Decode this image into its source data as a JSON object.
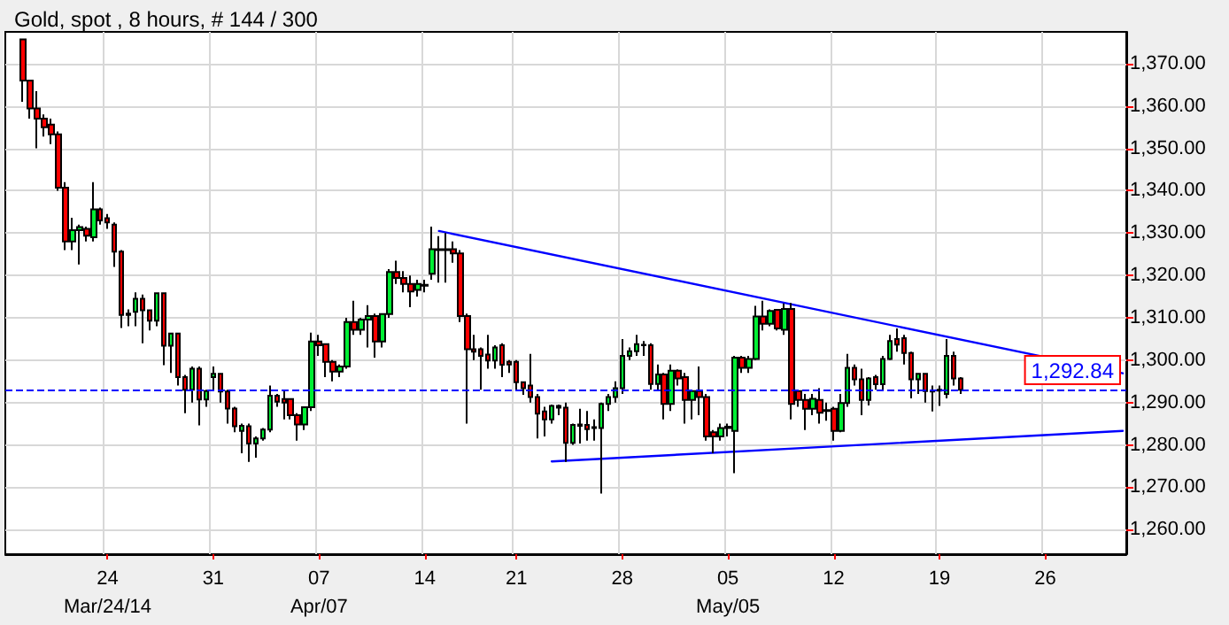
{
  "chart_data": {
    "type": "candlestick",
    "title": "Gold, spot , 8 hours, # 144 / 300",
    "categories": [
      null,
      null,
      null,
      null,
      null,
      null,
      null,
      null,
      null,
      null,
      null,
      null,
      null,
      null,
      "24\nMar/24/14",
      null,
      null,
      null,
      null,
      null,
      null,
      null,
      null,
      null,
      null,
      null,
      null,
      null,
      null,
      "31",
      null,
      null,
      null,
      null,
      null,
      null,
      null,
      null,
      null,
      null,
      null,
      null,
      null,
      null,
      "07\nApr/07",
      null,
      null,
      null,
      null,
      null,
      null,
      null,
      null,
      null,
      null,
      null,
      null,
      null,
      null,
      "14",
      null,
      null,
      null,
      null,
      null,
      null,
      null,
      null,
      null,
      null,
      null,
      null,
      "21",
      null,
      null,
      null,
      null,
      null,
      null,
      null,
      null,
      null,
      null,
      null,
      null,
      null,
      null,
      "28",
      null,
      null,
      null,
      null,
      null,
      null,
      null,
      null,
      null,
      null,
      null,
      null,
      null,
      null,
      "05\nMay/05",
      null,
      null,
      null,
      null,
      null,
      null,
      null,
      null,
      null,
      null,
      null,
      null,
      null,
      null,
      "12",
      null,
      null,
      null,
      null,
      null,
      null,
      null,
      null,
      null,
      null,
      null,
      null,
      null,
      null,
      "19",
      null,
      null,
      null,
      null,
      null,
      null,
      null,
      null,
      null,
      null,
      null,
      null,
      null,
      null,
      "26",
      null,
      null,
      null,
      null,
      null,
      null,
      null,
      null,
      null,
      null,
      null
    ],
    "ohlc": [
      null,
      null,
      [
        1375.7,
        1375.7,
        1361,
        1366
      ],
      [
        1366,
        1366,
        1357,
        1359.4
      ],
      [
        1359.4,
        1363.5,
        1350,
        1357
      ],
      [
        1357,
        1358,
        1352.8,
        1355
      ],
      [
        1355.6,
        1357,
        1351,
        1353.3
      ],
      [
        1353.3,
        1354,
        1340,
        1340.7
      ],
      [
        1340.7,
        1342,
        1326,
        1328
      ],
      [
        1328,
        1333.6,
        1326,
        1330.7
      ],
      [
        1330.7,
        1332,
        1322.6,
        1331.4
      ],
      [
        1331,
        1331.5,
        1328,
        1329.4
      ],
      [
        1329,
        1342,
        1328,
        1335.6
      ],
      [
        1335.6,
        1336,
        1332,
        1333
      ],
      [
        1333.5,
        1334.5,
        1331,
        1332.5
      ],
      [
        1332,
        1332.5,
        1322,
        1325.6
      ],
      [
        1325.6,
        1326,
        1307.6,
        1310.7
      ],
      [
        1311,
        1312,
        1308,
        1310.7
      ],
      [
        1311.4,
        1316,
        1308,
        1314.5
      ],
      [
        1314.5,
        1315.5,
        1304,
        1311.8
      ],
      [
        1311.8,
        1312,
        1307,
        1309.3
      ],
      [
        1309.3,
        1316,
        1308,
        1315.8
      ],
      [
        1315.8,
        1316,
        1298.8,
        1303.4
      ],
      [
        1303.4,
        1306.5,
        1297,
        1306.3
      ],
      [
        1306.3,
        1306.5,
        1294,
        1296
      ],
      [
        1296,
        1296.5,
        1287.5,
        1293
      ],
      [
        1293,
        1298.5,
        1290,
        1298
      ],
      [
        1298,
        1298.5,
        1284.6,
        1290.7
      ],
      [
        1290.7,
        1293,
        1289,
        1292.7
      ],
      [
        1296,
        1298.5,
        1293,
        1296.8
      ],
      [
        1296.8,
        1297,
        1290,
        1292.6
      ],
      [
        1292.6,
        1293,
        1285,
        1288.6
      ],
      [
        1288.6,
        1289,
        1283,
        1284.4
      ],
      [
        1283.3,
        1285,
        1278,
        1284.5
      ],
      [
        1284.4,
        1285,
        1276,
        1280.3
      ],
      [
        1280.3,
        1282,
        1277,
        1281.5
      ],
      [
        1281.5,
        1284,
        1281,
        1283.6
      ],
      [
        1283.6,
        1294,
        1283,
        1291.6
      ],
      [
        1291.6,
        1292,
        1289,
        1290.2
      ],
      [
        1290.8,
        1293,
        1286,
        1290
      ],
      [
        1290.8,
        1291,
        1286,
        1287
      ],
      [
        1287,
        1287.5,
        1281,
        1284.8
      ],
      [
        1284.8,
        1289,
        1283.5,
        1288.9
      ],
      [
        1288.9,
        1306.5,
        1288,
        1304.4
      ],
      [
        1304.4,
        1306,
        1301,
        1303.5
      ],
      [
        1303.8,
        1304,
        1296,
        1299.6
      ],
      [
        1299.6,
        1300,
        1295,
        1297.3
      ],
      [
        1297.3,
        1299,
        1296,
        1298.5
      ],
      [
        1298.5,
        1310,
        1298,
        1309
      ],
      [
        1309,
        1314,
        1306,
        1307.2
      ],
      [
        1307.2,
        1310,
        1306,
        1309.6
      ],
      [
        1309.6,
        1313,
        1303,
        1310.4
      ],
      [
        1310.4,
        1311,
        1300.6,
        1304.4
      ],
      [
        1304.4,
        1311,
        1303,
        1310.9
      ],
      [
        1310.9,
        1321.5,
        1310,
        1320.8
      ],
      [
        1320.8,
        1323.5,
        1318,
        1319.4
      ],
      [
        1319.4,
        1321,
        1316,
        1318
      ],
      [
        1318,
        1320,
        1312.5,
        1316.2
      ],
      [
        1316.6,
        1319,
        1315,
        1318
      ],
      [
        1317.6,
        1319,
        1316,
        1317.8
      ],
      [
        1320.4,
        1331.5,
        1319,
        1326.2
      ],
      [
        1326.2,
        1329.3,
        1318.3,
        1326
      ],
      [
        1326,
        1330,
        1318.3,
        1326.2
      ],
      [
        1326.2,
        1328,
        1323,
        1325.2
      ],
      [
        1325.2,
        1326,
        1309,
        1310.4
      ],
      [
        1310.4,
        1311,
        1285,
        1302.6
      ],
      [
        1302.6,
        1306,
        1300,
        1302
      ],
      [
        1302.6,
        1303,
        1293,
        1301
      ],
      [
        1301.3,
        1306,
        1298,
        1299.9
      ],
      [
        1299.9,
        1303.5,
        1298,
        1303
      ],
      [
        1303.5,
        1304,
        1296,
        1298.9
      ],
      [
        1299.6,
        1300,
        1297,
        1299
      ],
      [
        1299.6,
        1300,
        1293,
        1294.8
      ],
      [
        1294.8,
        1295,
        1291.8,
        1293.4
      ],
      [
        1294,
        1301.5,
        1290,
        1291.3
      ],
      [
        1291.3,
        1292,
        1281.5,
        1287.4
      ],
      [
        1287.9,
        1289,
        1282,
        1286
      ],
      [
        1286,
        1289.5,
        1285,
        1289.2
      ],
      [
        1289.2,
        1289.5,
        1287,
        1288.8
      ],
      [
        1288.8,
        1290,
        1276,
        1280.5
      ],
      [
        1280.5,
        1285,
        1280,
        1284.7
      ],
      [
        1284.5,
        1288.5,
        1280.3,
        1284.8
      ],
      [
        1284.7,
        1288,
        1281,
        1283.7
      ],
      [
        1284,
        1286,
        1281,
        1284.2
      ],
      [
        1284,
        1290,
        1268.5,
        1289.7
      ],
      [
        1289.7,
        1292,
        1288,
        1291.3
      ],
      [
        1291.3,
        1295,
        1290,
        1293.4
      ],
      [
        1293.4,
        1305,
        1292,
        1301
      ],
      [
        1301,
        1303,
        1300,
        1302.1
      ],
      [
        1302.1,
        1306,
        1301,
        1303.8
      ],
      [
        1303.6,
        1304.5,
        1301,
        1303.5
      ],
      [
        1303.5,
        1304,
        1293,
        1294.4
      ],
      [
        1294.4,
        1299,
        1293,
        1296.6
      ],
      [
        1296.6,
        1297,
        1286,
        1289.7
      ],
      [
        1289.7,
        1299,
        1288,
        1297.5
      ],
      [
        1297.5,
        1297.8,
        1294,
        1295.7
      ],
      [
        1296,
        1297,
        1285,
        1290.6
      ],
      [
        1290.6,
        1293,
        1286,
        1292.7
      ],
      [
        1292.7,
        1298.5,
        1287,
        1291.3
      ],
      [
        1291.3,
        1292,
        1281,
        1282
      ],
      [
        1283,
        1283.5,
        1278,
        1282
      ],
      [
        1282,
        1285,
        1281,
        1284
      ],
      [
        1284,
        1285,
        1282,
        1284.3
      ],
      [
        1283.3,
        1301,
        1273.3,
        1300.6
      ],
      [
        1300.6,
        1301,
        1297,
        1298.2
      ],
      [
        1298.2,
        1301,
        1297,
        1300.3
      ],
      [
        1300.3,
        1312.8,
        1300,
        1310.3
      ],
      [
        1310.3,
        1314,
        1307,
        1308.6
      ],
      [
        1308.6,
        1312,
        1308,
        1311.6
      ],
      [
        1311.9,
        1312,
        1307,
        1307.5
      ],
      [
        1307.2,
        1313.4,
        1306,
        1312.1
      ],
      [
        1312.1,
        1313.5,
        1286,
        1289.7
      ],
      [
        1292.7,
        1293,
        1289,
        1290.6
      ],
      [
        1290.6,
        1292,
        1283.5,
        1288.5
      ],
      [
        1288.5,
        1292,
        1287,
        1290.9
      ],
      [
        1290.6,
        1293.4,
        1285,
        1287.6
      ],
      [
        1288,
        1290,
        1285.7,
        1288.2
      ],
      [
        1288.5,
        1289,
        1281,
        1283.3
      ],
      [
        1283.3,
        1292,
        1283,
        1289.9
      ],
      [
        1289.9,
        1301.5,
        1289,
        1298.2
      ],
      [
        1298.2,
        1299,
        1294,
        1295.5
      ],
      [
        1295.5,
        1298,
        1287,
        1290.6
      ],
      [
        1290.6,
        1296,
        1289.3,
        1295.7
      ],
      [
        1296,
        1296.5,
        1293,
        1294.3
      ],
      [
        1294.3,
        1301,
        1293,
        1300.3
      ],
      [
        1300.3,
        1306,
        1300,
        1304.5
      ],
      [
        1305,
        1307.5,
        1302,
        1303.7
      ],
      [
        1305.2,
        1306,
        1299,
        1301.7
      ],
      [
        1301.7,
        1302,
        1291,
        1295.5
      ],
      [
        1295.5,
        1297,
        1292,
        1296.8
      ],
      [
        1296.8,
        1297,
        1290,
        1292.7
      ],
      [
        1292.7,
        1294,
        1287.9,
        1292.6
      ],
      [
        1292.8,
        1294,
        1289.2,
        1293
      ],
      [
        1292,
        1305,
        1291,
        1301
      ],
      [
        1301,
        1302,
        1294,
        1295.7
      ],
      [
        1295.7,
        1296,
        1292,
        1293
      ],
      null,
      null,
      null,
      null,
      null,
      null,
      null,
      null,
      null,
      null,
      null,
      null,
      null,
      null,
      null,
      null,
      null,
      null,
      null,
      null,
      null,
      null,
      null
    ],
    "series": [
      {
        "type": "line",
        "color": "#0000ff",
        "values": [
          null,
          null,
          null,
          null,
          null,
          null,
          null,
          null,
          null,
          null,
          null,
          null,
          null,
          null,
          null,
          null,
          null,
          null,
          null,
          null,
          null,
          null,
          null,
          null,
          null,
          null,
          null,
          null,
          null,
          null,
          null,
          null,
          null,
          null,
          null,
          null,
          null,
          null,
          null,
          null,
          null,
          null,
          null,
          null,
          null,
          null,
          null,
          null,
          null,
          null,
          null,
          null,
          null,
          null,
          null,
          null,
          null,
          null,
          null,
          null,
          null,
          1330.5,
          null,
          null,
          null,
          null,
          null,
          null,
          null,
          null,
          null,
          null,
          null,
          null,
          null,
          null,
          null,
          null,
          null,
          null,
          null,
          null,
          null,
          null,
          null,
          null,
          null,
          null,
          null,
          null,
          null,
          null,
          null,
          null,
          null,
          null,
          null,
          null,
          null,
          null,
          null,
          null,
          null,
          null,
          null,
          null,
          null,
          null,
          null,
          null,
          null,
          null,
          null,
          null,
          null,
          null,
          null,
          null,
          null,
          null,
          null,
          null,
          null,
          null,
          null,
          null,
          null,
          null,
          null,
          null,
          null,
          null,
          null,
          null,
          null,
          null,
          null,
          null,
          null,
          null,
          null,
          null,
          null,
          null,
          null,
          null,
          null,
          null,
          null,
          null,
          null,
          null,
          null,
          null,
          null,
          null,
          null,
          null,
          1296.9
        ]
      },
      {
        "type": "line",
        "color": "#0000ff",
        "values": [
          null,
          null,
          null,
          null,
          null,
          null,
          null,
          null,
          null,
          null,
          null,
          null,
          null,
          null,
          null,
          null,
          null,
          null,
          null,
          null,
          null,
          null,
          null,
          null,
          null,
          null,
          null,
          null,
          null,
          null,
          null,
          null,
          null,
          null,
          null,
          null,
          null,
          null,
          null,
          null,
          null,
          null,
          null,
          null,
          null,
          null,
          null,
          null,
          null,
          null,
          null,
          null,
          null,
          null,
          null,
          null,
          null,
          null,
          null,
          null,
          null,
          null,
          null,
          null,
          null,
          null,
          null,
          null,
          null,
          null,
          null,
          null,
          null,
          null,
          null,
          null,
          null,
          1276.1,
          null,
          null,
          null,
          null,
          null,
          null,
          null,
          null,
          null,
          null,
          null,
          null,
          null,
          null,
          null,
          null,
          null,
          null,
          null,
          null,
          null,
          null,
          null,
          null,
          null,
          null,
          null,
          null,
          null,
          null,
          null,
          null,
          null,
          null,
          null,
          null,
          null,
          null,
          null,
          null,
          null,
          null,
          null,
          null,
          null,
          null,
          null,
          null,
          null,
          null,
          null,
          null,
          null,
          null,
          null,
          null,
          null,
          null,
          null,
          null,
          null,
          null,
          null,
          null,
          null,
          null,
          null,
          null,
          null,
          null,
          null,
          null,
          null,
          null,
          null,
          null,
          null,
          null,
          null,
          null,
          1283.3
        ]
      }
    ],
    "ref_lines": [
      {
        "axis": "y",
        "value": 1292.84,
        "label": "1,292.84",
        "color": "#0000ff",
        "line_style": "dashed"
      }
    ],
    "ylim": [
      1254.2,
      1377.5
    ],
    "yticks": [
      {
        "value": 1260,
        "label": "1,260.00"
      },
      {
        "value": 1270,
        "label": "1,270.00"
      },
      {
        "value": 1280,
        "label": "1,280.00"
      },
      {
        "value": 1290,
        "label": "1,290.00"
      },
      {
        "value": 1300,
        "label": "1,300.00"
      },
      {
        "value": 1310,
        "label": "1,310.00"
      },
      {
        "value": 1320,
        "label": "1,320.00"
      },
      {
        "value": 1330,
        "label": "1,330.00"
      },
      {
        "value": 1340,
        "label": "1,340.00"
      },
      {
        "value": 1350,
        "label": "1,350.00"
      },
      {
        "value": 1360,
        "label": "1,360.00"
      },
      {
        "value": 1370,
        "label": "1,370.00"
      }
    ],
    "grid": true
  }
}
